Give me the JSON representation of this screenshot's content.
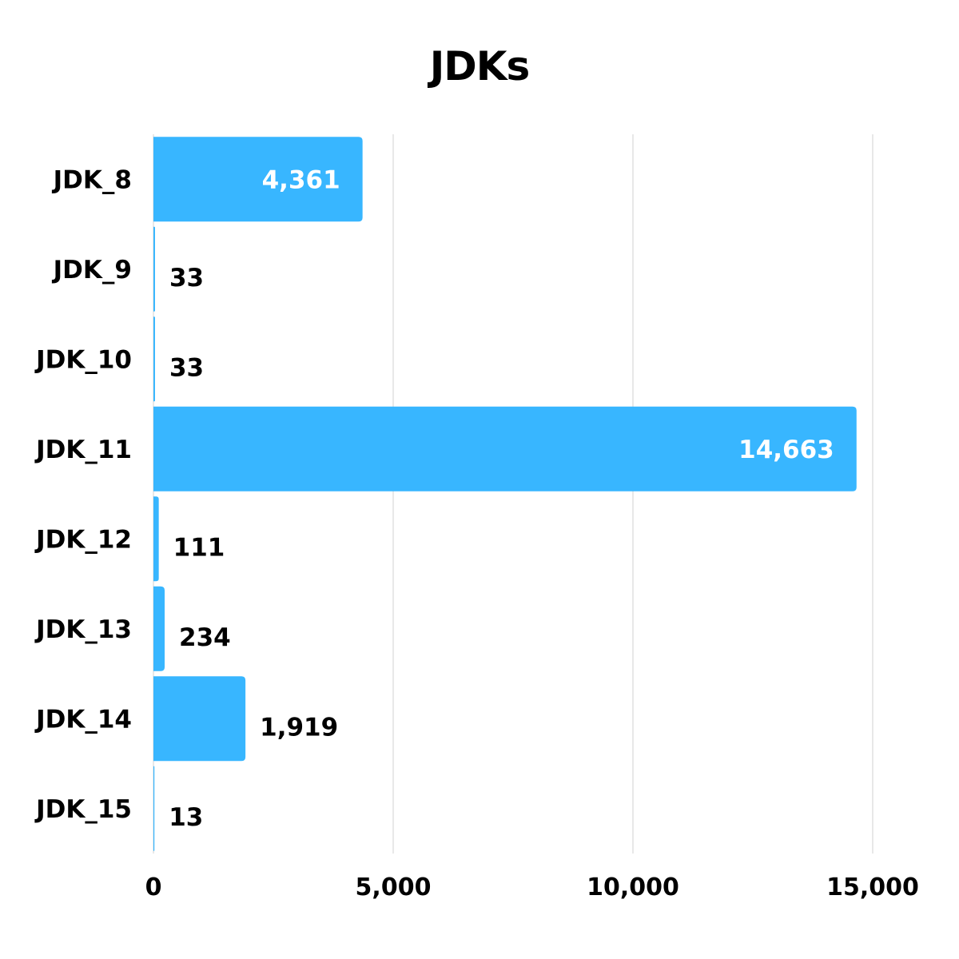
{
  "chart_data": {
    "type": "bar",
    "orientation": "horizontal",
    "title": "JDKs",
    "categories": [
      "JDK_8",
      "JDK_9",
      "JDK_10",
      "JDK_11",
      "JDK_12",
      "JDK_13",
      "JDK_14",
      "JDK_15"
    ],
    "values": [
      4361,
      33,
      33,
      14663,
      111,
      234,
      1919,
      13
    ],
    "value_labels": [
      "4,361",
      "33",
      "33",
      "14,663",
      "111",
      "234",
      "1,919",
      "13"
    ],
    "xlim": [
      0,
      15000
    ],
    "xticks": [
      0,
      5000,
      10000,
      15000
    ],
    "xtick_labels": [
      "0",
      "5,000",
      "10,000",
      "15,000"
    ],
    "xlabel": "",
    "ylabel": "",
    "grid": "vertical",
    "legend": "none",
    "colors": {
      "bar": "#38b6ff",
      "grid": "#d0d0d0",
      "text": "#000000",
      "inside_label": "#ffffff"
    }
  }
}
